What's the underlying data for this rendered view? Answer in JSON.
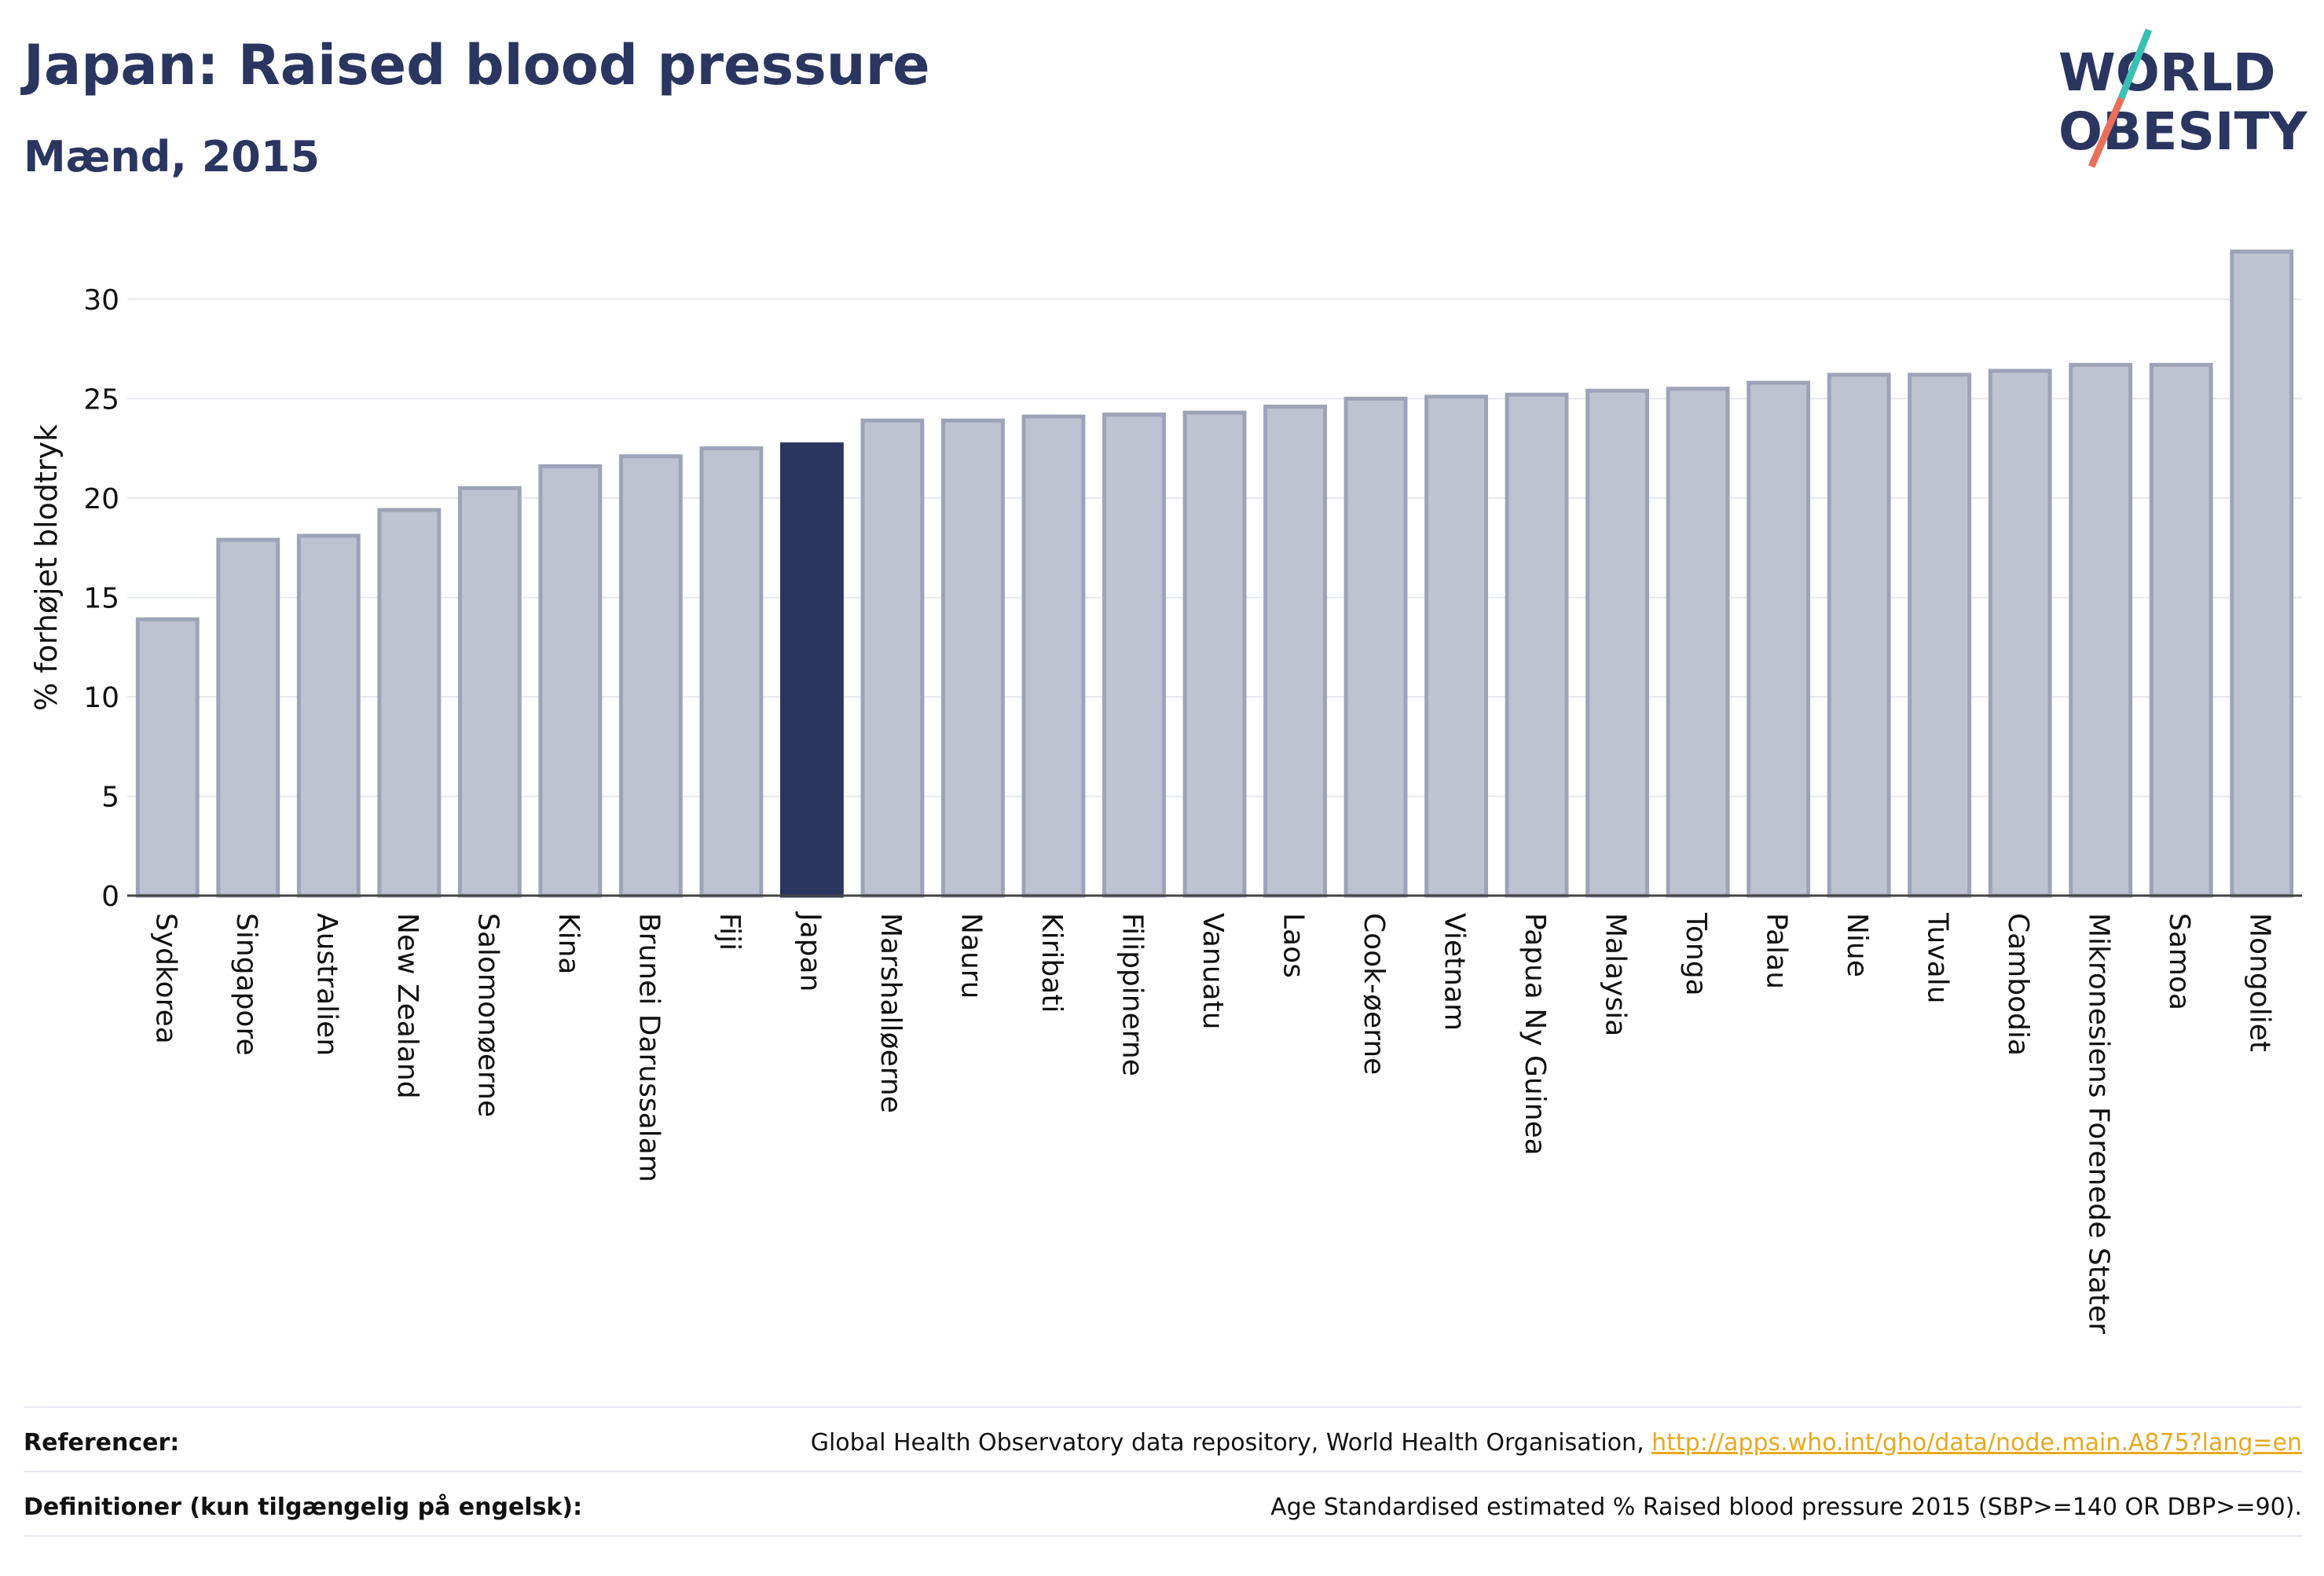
{
  "header": {
    "title": "Japan: Raised blood pressure",
    "subtitle": "Mænd, 2015"
  },
  "logo": {
    "line1": "WORLD",
    "line2": "OBESITY",
    "accent_teal": "#3bbfb5",
    "accent_coral": "#e8705a"
  },
  "colors": {
    "bar": "#bfc2d0",
    "bar_stroke": "#9ea3b8",
    "highlight": "#2a3560",
    "grid": "#e6e8ee",
    "text": "#2a3560"
  },
  "chart_data": {
    "type": "bar",
    "ylabel": "% forhøjet blodtryk",
    "ylim": [
      0,
      33
    ],
    "yticks": [
      0,
      5,
      10,
      15,
      20,
      25,
      30
    ],
    "highlight": "Japan",
    "categories": [
      "Sydkorea",
      "Singapore",
      "Australien",
      "New Zealand",
      "Salomonøerne",
      "Kina",
      "Brunei Darussalam",
      "Fiji",
      "Japan",
      "Marshalløerne",
      "Nauru",
      "Kiribati",
      "Filippinerne",
      "Vanuatu",
      "Laos",
      "Cook-øerne",
      "Vietnam",
      "Papua Ny Guinea",
      "Malaysia",
      "Tonga",
      "Palau",
      "Niue",
      "Tuvalu",
      "Cambodia",
      "Mikronesiens Forenede Stater",
      "Samoa",
      "Mongoliet"
    ],
    "values": [
      13.9,
      17.9,
      18.1,
      19.4,
      20.5,
      21.6,
      22.1,
      22.5,
      22.7,
      23.9,
      23.9,
      24.1,
      24.2,
      24.3,
      24.6,
      25.0,
      25.1,
      25.2,
      25.4,
      25.5,
      25.8,
      26.2,
      26.2,
      26.4,
      26.7,
      26.7,
      32.4
    ]
  },
  "footer": {
    "ref_label": "Referencer:",
    "ref_text": "Global Health Observatory data repository, World Health Organisation, ",
    "ref_link": "http://apps.who.int/gho/data/node.main.A875?lang=en",
    "def_label": "Definitioner (kun tilgængelig på engelsk):",
    "def_text": "Age Standardised estimated % Raised blood pressure 2015 (SBP>=140 OR DBP>=90)."
  }
}
